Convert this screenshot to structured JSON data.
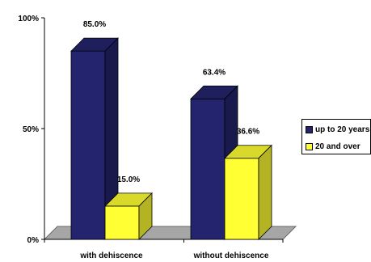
{
  "chart_data": {
    "type": "bar",
    "categories": [
      "with dehiscence",
      "without dehiscence"
    ],
    "series": [
      {
        "name": "up to 20 years",
        "values": [
          85.0,
          63.4
        ],
        "labels": [
          "85.0%",
          "63.4%"
        ],
        "color": "#24246e"
      },
      {
        "name": "20 and over",
        "values": [
          15.0,
          36.6
        ],
        "labels": [
          "15.0%",
          "36.6%"
        ],
        "color": "#ffff33"
      }
    ],
    "ylim": [
      0,
      100
    ],
    "yticks": [
      {
        "value": 0,
        "label": "0%"
      },
      {
        "value": 50,
        "label": "50%"
      },
      {
        "value": 100,
        "label": "100%"
      }
    ],
    "legend_position": "right",
    "grid": false,
    "style": "3d-bar"
  }
}
